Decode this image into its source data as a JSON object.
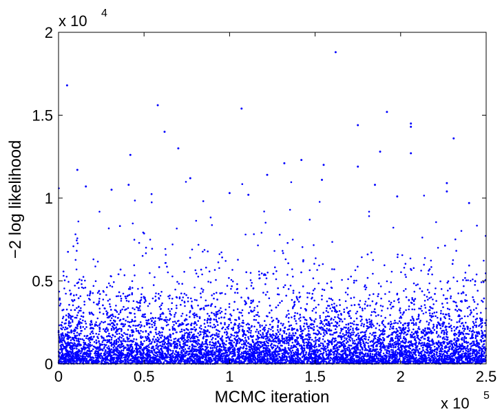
{
  "chart_data": {
    "type": "scatter",
    "title": "",
    "xlabel": "MCMC iteration",
    "ylabel": "−2 log likelihood",
    "xlim": [
      0,
      250000
    ],
    "ylim": [
      0,
      20000
    ],
    "x_ticks": [
      "0",
      "0.5",
      "1",
      "1.5",
      "2",
      "2.5"
    ],
    "y_ticks": [
      "0",
      "0.5",
      "1",
      "1.5",
      "2"
    ],
    "x_exponent_base": "x 10",
    "x_exponent_power": "5",
    "y_exponent_base": "x 10",
    "y_exponent_power": "4",
    "grid": false,
    "marker_color": "#0000ff",
    "n_points": 8000,
    "series": [
      {
        "values_description": "dense scatter: majority of points between 0 and 2500, thinning upward to ~10000; sparse outliers",
        "outliers": [
          [
            5000,
            16800
          ],
          [
            58000,
            15600
          ],
          [
            62000,
            14000
          ],
          [
            70000,
            13000
          ],
          [
            42000,
            12600
          ],
          [
            107000,
            15400
          ],
          [
            162000,
            18800
          ],
          [
            175000,
            14400
          ],
          [
            192000,
            15200
          ],
          [
            206000,
            14500
          ],
          [
            206000,
            14300
          ],
          [
            206000,
            12700
          ],
          [
            231000,
            13600
          ],
          [
            188000,
            12800
          ],
          [
            142000,
            12300
          ],
          [
            132000,
            12100
          ],
          [
            155000,
            12000
          ],
          [
            175000,
            11900
          ],
          [
            122000,
            11400
          ],
          [
            154000,
            11100
          ],
          [
            227000,
            10900
          ],
          [
            227000,
            10400
          ],
          [
            11000,
            11700
          ],
          [
            16000,
            10700
          ],
          [
            31000,
            10500
          ],
          [
            41000,
            10800
          ],
          [
            77000,
            11200
          ],
          [
            100000,
            10300
          ],
          [
            111000,
            10200
          ],
          [
            185000,
            10800
          ],
          [
            198000,
            10100
          ],
          [
            240000,
            9700
          ]
        ]
      }
    ]
  }
}
